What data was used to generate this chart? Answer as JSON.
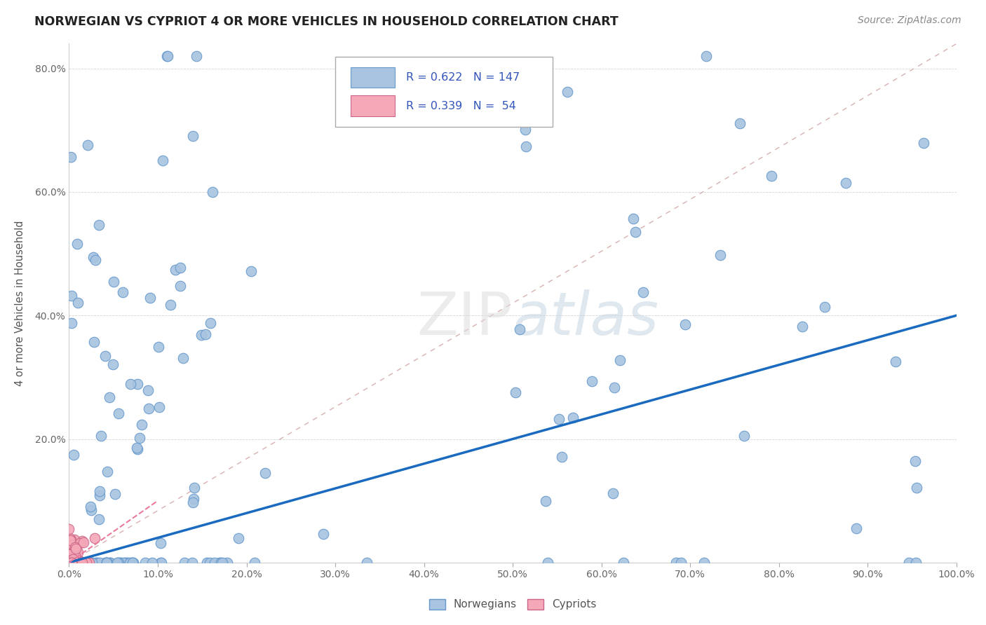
{
  "title": "NORWEGIAN VS CYPRIOT 4 OR MORE VEHICLES IN HOUSEHOLD CORRELATION CHART",
  "source": "Source: ZipAtlas.com",
  "ylabel_label": "4 or more Vehicles in Household",
  "xlim": [
    0.0,
    1.0
  ],
  "ylim": [
    0.0,
    0.84
  ],
  "xtick_labels": [
    "0.0%",
    "10.0%",
    "20.0%",
    "30.0%",
    "40.0%",
    "50.0%",
    "60.0%",
    "70.0%",
    "80.0%",
    "90.0%",
    "100.0%"
  ],
  "ytick_labels": [
    "",
    "20.0%",
    "40.0%",
    "60.0%",
    "80.0%"
  ],
  "norwegian_color": "#a8c4e0",
  "cypriot_color": "#f4a8b8",
  "norwegian_edge": "#6699cc",
  "cypriot_edge": "#cc6688",
  "trendline_norwegian_color": "#1a6bbf",
  "trendline_cypriot_color": "#e87a9a",
  "diagonal_color": "#d8b0b0",
  "legend_text_color": "#3355bb",
  "watermark": "ZIPatlas",
  "background_color": "#ffffff",
  "nor_trendline_x0": 0.0,
  "nor_trendline_y0": 0.0,
  "nor_trendline_x1": 1.0,
  "nor_trendline_y1": 0.4,
  "cyp_trendline_x0": 0.0,
  "cyp_trendline_y0": 0.0,
  "cyp_trendline_x1": 0.1,
  "cyp_trendline_y1": 0.1
}
